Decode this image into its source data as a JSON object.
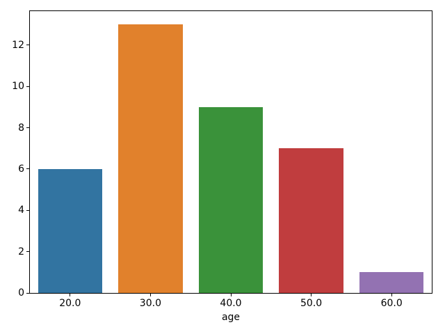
{
  "chart_data": {
    "type": "bar",
    "categories": [
      "20.0",
      "30.0",
      "40.0",
      "50.0",
      "60.0"
    ],
    "values": [
      6,
      13,
      9,
      7,
      1
    ],
    "bar_colors": [
      "#3274A1",
      "#E1812C",
      "#3A923A",
      "#C03D3E",
      "#9372B2"
    ],
    "title": "",
    "xlabel": "age",
    "ylabel": "",
    "ylim": [
      0,
      13.65
    ],
    "yticks": [
      0,
      2,
      4,
      6,
      8,
      10,
      12
    ],
    "bar_width_fraction": 0.8,
    "grid": false,
    "legend_position": "none",
    "spine_color": "#000000",
    "text_color": "#000000",
    "background_color": "#ffffff"
  }
}
